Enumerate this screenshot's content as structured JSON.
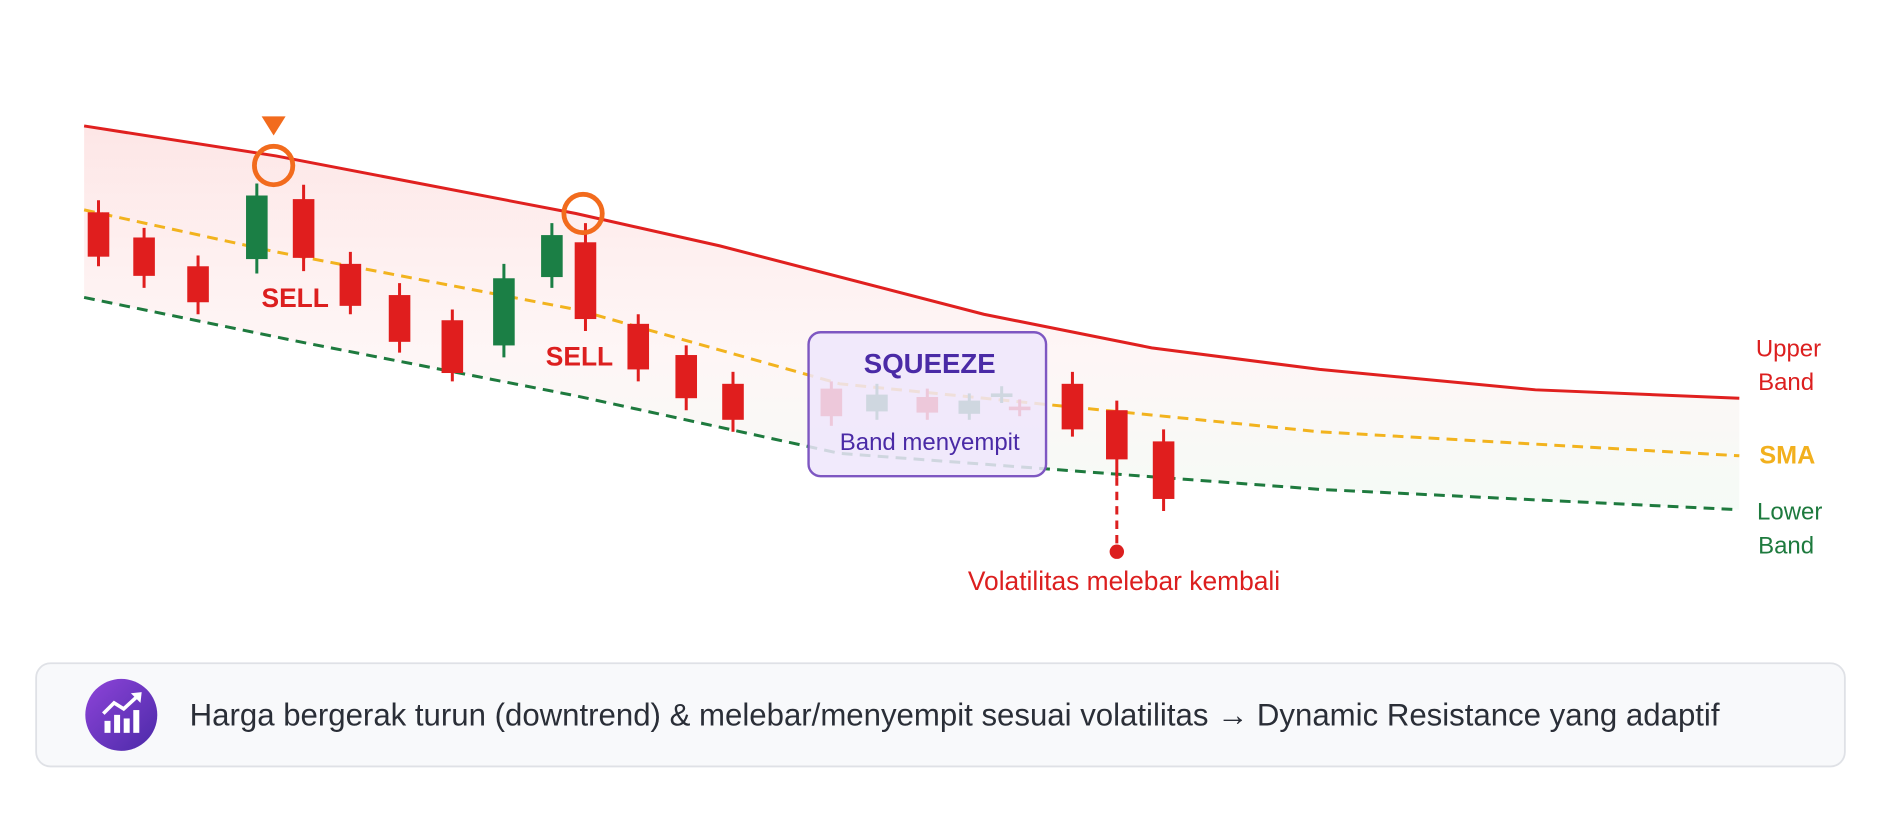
{
  "annotations": {
    "sell": [
      "SELL",
      "SELL"
    ],
    "squeeze_title": "SQUEEZE",
    "squeeze_note": "Band menyempit",
    "breakout": "Volatilitas melebar kembali"
  },
  "legend": {
    "upper": [
      "Upper",
      "Band"
    ],
    "sma": "SMA",
    "lower": [
      "Lower",
      "Band"
    ]
  },
  "footer": {
    "text": "Harga bergerak turun (downtrend) & melebar/menyempit sesuai volatilitas → Dynamic Resistance yang adaptif"
  }
}
